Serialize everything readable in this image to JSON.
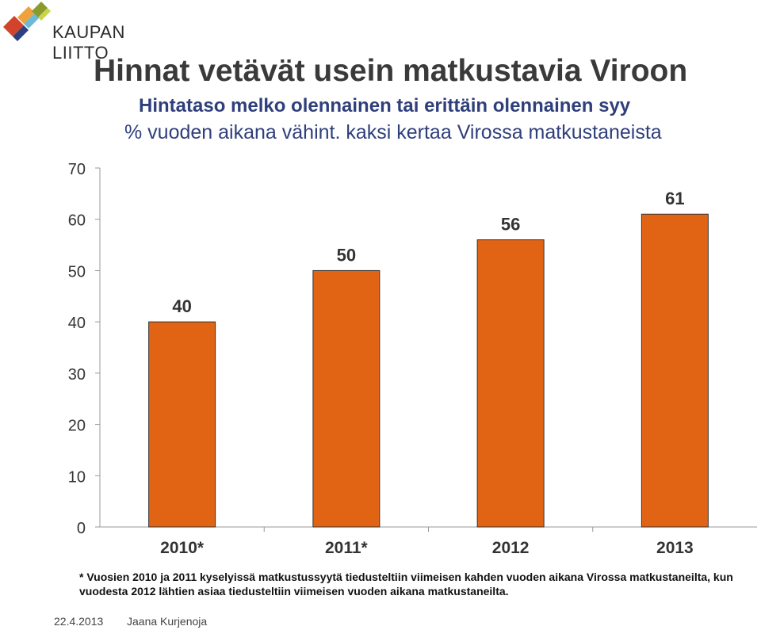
{
  "brand": {
    "logo_text": "KAUPAN LIITTO",
    "colors": [
      "#f0a13a",
      "#d2432b",
      "#8a9b2c",
      "#2e3f80",
      "#6bbad6"
    ]
  },
  "header": {
    "title": "Hinnat vetävät usein matkustavia Viroon",
    "subtitle": "Hintataso melko olennainen tai erittäin olennainen syy",
    "subtitle2": "% vuoden aikana vähint. kaksi kertaa Virossa matkustaneista"
  },
  "chart_data": {
    "type": "bar",
    "categories": [
      "2010*",
      "2011*",
      "2012",
      "2013"
    ],
    "values": [
      40,
      50,
      56,
      61
    ],
    "ylim": [
      0,
      70
    ],
    "yticks": [
      "0",
      "10",
      "20",
      "30",
      "40",
      "50",
      "60",
      "70"
    ],
    "bar_color": "#e06414",
    "grid": false,
    "legend": "none"
  },
  "footnote": "* Vuosien 2010 ja 2011 kyselyissä matkustussyytä tiedusteltiin viimeisen kahden vuoden aikana Virossa matkustaneilta, kun vuodesta 2012 lähtien asiaa tiedusteltiin viimeisen vuoden aikana matkustaneilta.",
  "footer": {
    "date": "22.4.2013",
    "author": "Jaana Kurjenoja"
  }
}
